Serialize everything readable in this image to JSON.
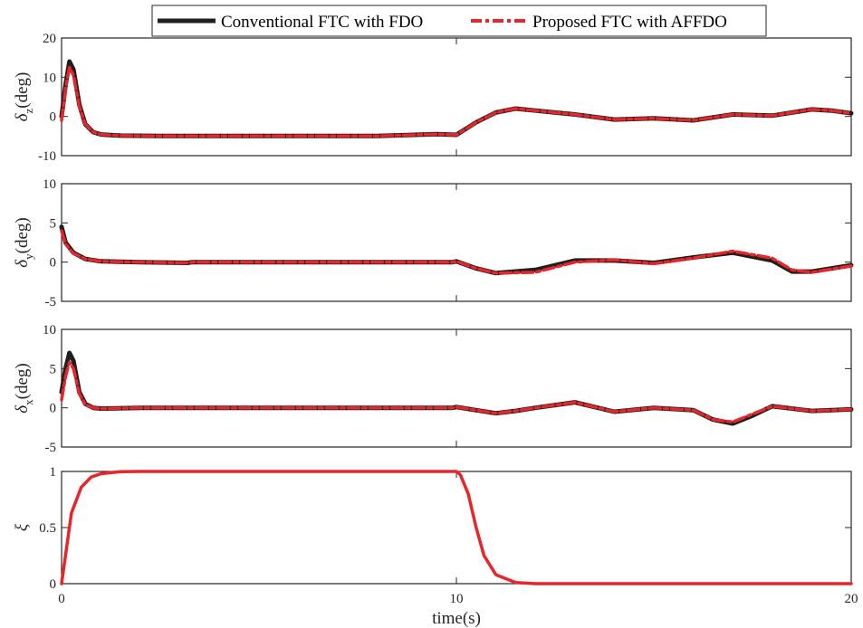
{
  "legend": {
    "entries": [
      {
        "label": "Conventional FTC with FDO",
        "color": "#1f1f1f",
        "style": "solid"
      },
      {
        "label": "Proposed FTC with AFFDO",
        "color": "#e8252a",
        "style": "dashdot"
      }
    ],
    "placement": "top-center, outside"
  },
  "xlabel": "time(s)",
  "xticks": [
    "0",
    "10",
    "20"
  ],
  "chart_data": [
    {
      "type": "line",
      "ylabel_main": "δ",
      "ylabel_sub": "z",
      "ylabel_unit": "(deg)",
      "xlim": [
        0,
        20
      ],
      "ylim": [
        -10,
        20
      ],
      "yticks": [
        "-10",
        "0",
        "10",
        "20"
      ],
      "ytick_values": [
        -10,
        0,
        10,
        20
      ],
      "grid": false,
      "series": [
        {
          "name": "Conventional FTC with FDO",
          "x": [
            0,
            0.1,
            0.2,
            0.3,
            0.45,
            0.6,
            0.8,
            1.0,
            1.5,
            2.5,
            5,
            8,
            9.5,
            10,
            10.5,
            11,
            11.5,
            12,
            13,
            14,
            15,
            16,
            17,
            18,
            19,
            19.5,
            20
          ],
          "y": [
            0,
            8,
            14,
            12,
            3,
            -2,
            -4,
            -4.6,
            -4.9,
            -5,
            -5,
            -5,
            -4.5,
            -4.7,
            -1.5,
            1,
            2,
            1.5,
            0.5,
            -0.8,
            -0.5,
            -1,
            0.5,
            0.2,
            1.8,
            1.5,
            0.8
          ]
        },
        {
          "name": "Proposed FTC with AFFDO",
          "x": [
            0,
            0.1,
            0.2,
            0.3,
            0.45,
            0.6,
            0.8,
            1.0,
            1.5,
            2.5,
            5,
            8,
            9.5,
            10,
            10.5,
            11,
            11.5,
            12,
            13,
            14,
            15,
            16,
            17,
            18,
            19,
            19.5,
            20
          ],
          "y": [
            -1,
            7,
            12.5,
            10.5,
            2.5,
            -2,
            -4,
            -4.6,
            -4.9,
            -5,
            -5,
            -5,
            -4.5,
            -4.7,
            -1.5,
            1,
            2,
            1.5,
            0.5,
            -0.8,
            -0.5,
            -1,
            0.5,
            0.2,
            1.8,
            1.5,
            0.8
          ]
        }
      ]
    },
    {
      "type": "line",
      "ylabel_main": "δ",
      "ylabel_sub": "y",
      "ylabel_unit": "(deg)",
      "xlim": [
        0,
        20
      ],
      "ylim": [
        -5,
        10
      ],
      "yticks": [
        "-5",
        "0",
        "5",
        "10"
      ],
      "ytick_values": [
        -5,
        0,
        5,
        10
      ],
      "grid": false,
      "series": [
        {
          "name": "Conventional FTC with FDO",
          "x": [
            0,
            0.1,
            0.3,
            0.6,
            1.0,
            2,
            3.2,
            3.3,
            9.9,
            10,
            10.5,
            11,
            12,
            13,
            14,
            15,
            16,
            17,
            18,
            18.5,
            19,
            20
          ],
          "y": [
            4.5,
            2.5,
            1.2,
            0.4,
            0.1,
            0,
            -0.1,
            0,
            0,
            0.1,
            -0.8,
            -1.4,
            -1,
            0.2,
            0.2,
            -0.1,
            0.6,
            1.2,
            0.2,
            -1.2,
            -1.2,
            -0.4
          ]
        },
        {
          "name": "Proposed FTC with AFFDO",
          "x": [
            0,
            0.1,
            0.3,
            0.6,
            1.0,
            2,
            3.2,
            3.3,
            9.9,
            10,
            10.5,
            11,
            12,
            13,
            14,
            15,
            16,
            17,
            18,
            18.5,
            19,
            20
          ],
          "y": [
            4.0,
            2.3,
            1.1,
            0.4,
            0.1,
            0,
            -0.1,
            0,
            0,
            0.1,
            -0.8,
            -1.4,
            -1.3,
            0,
            0.3,
            -0.2,
            0.5,
            1.4,
            0.5,
            -1,
            -1.3,
            -0.5
          ]
        }
      ]
    },
    {
      "type": "line",
      "ylabel_main": "δ",
      "ylabel_sub": "x",
      "ylabel_unit": "(deg)",
      "xlim": [
        0,
        20
      ],
      "ylim": [
        -5,
        10
      ],
      "yticks": [
        "-5",
        "0",
        "5",
        "10"
      ],
      "ytick_values": [
        -5,
        0,
        5,
        10
      ],
      "grid": false,
      "series": [
        {
          "name": "Conventional FTC with FDO",
          "x": [
            0,
            0.1,
            0.2,
            0.3,
            0.45,
            0.6,
            0.8,
            1.0,
            2,
            5,
            9.9,
            10,
            10.5,
            11,
            11.5,
            12,
            13,
            14,
            15,
            16,
            16.5,
            17,
            17.5,
            18,
            19,
            20
          ],
          "y": [
            2,
            5,
            7,
            6,
            2,
            0.5,
            0,
            -0.1,
            0,
            0,
            0,
            0.1,
            -0.3,
            -0.7,
            -0.4,
            0,
            0.7,
            -0.5,
            0,
            -0.3,
            -1.5,
            -2,
            -1,
            0.2,
            -0.4,
            -0.2
          ]
        },
        {
          "name": "Proposed FTC with AFFDO",
          "x": [
            0,
            0.1,
            0.2,
            0.3,
            0.45,
            0.6,
            0.8,
            1.0,
            2,
            5,
            9.9,
            10,
            10.5,
            11,
            11.5,
            12,
            13,
            14,
            15,
            16,
            16.5,
            17,
            17.5,
            18,
            19,
            20
          ],
          "y": [
            1,
            4,
            5.8,
            5,
            1.8,
            0.4,
            0,
            -0.1,
            0,
            0,
            0,
            0.1,
            -0.3,
            -0.7,
            -0.4,
            0,
            0.7,
            -0.5,
            0,
            -0.3,
            -1.5,
            -1.8,
            -0.8,
            0.2,
            -0.4,
            -0.2
          ]
        }
      ]
    },
    {
      "type": "line",
      "ylabel_main": "ξ",
      "ylabel_sub": "",
      "ylabel_unit": "",
      "xlim": [
        0,
        20
      ],
      "ylim": [
        0,
        1
      ],
      "yticks": [
        "0",
        "0.5",
        "1"
      ],
      "ytick_values": [
        0,
        0.5,
        1
      ],
      "grid": false,
      "series": [
        {
          "name": "Proposed FTC with AFFDO",
          "x": [
            0,
            0.25,
            0.5,
            0.75,
            1.0,
            1.5,
            2.0,
            10,
            10.1,
            10.3,
            10.5,
            10.7,
            11.0,
            11.5,
            12.0,
            20
          ],
          "y": [
            0,
            0.63,
            0.86,
            0.95,
            0.98,
            0.998,
            1,
            1,
            0.97,
            0.8,
            0.5,
            0.25,
            0.08,
            0.01,
            0,
            0
          ]
        }
      ]
    }
  ]
}
